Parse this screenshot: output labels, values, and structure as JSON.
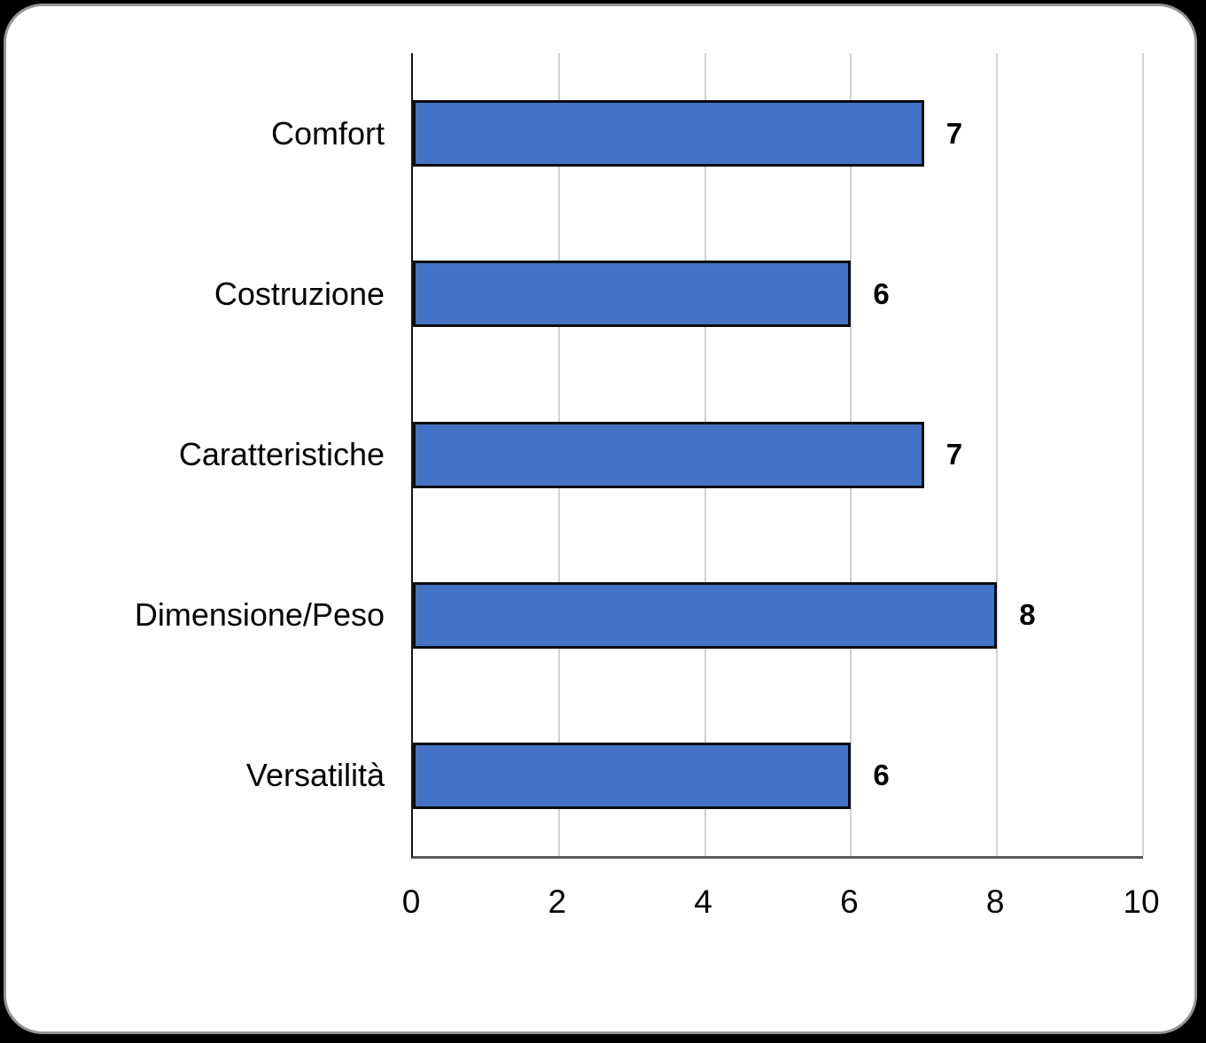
{
  "chart_data": {
    "type": "bar",
    "orientation": "horizontal",
    "title": "",
    "categories": [
      "Comfort",
      "Costruzione",
      "Caratteristiche",
      "Dimensione/Peso",
      "Versatilità"
    ],
    "values": [
      7,
      6,
      7,
      8,
      6
    ],
    "value_labels": [
      "7",
      "6",
      "7",
      "8",
      "6"
    ],
    "xlabel": "",
    "ylabel": "",
    "xlim": [
      0,
      10
    ],
    "xticks": [
      0,
      2,
      4,
      6,
      8,
      10
    ],
    "grid": true,
    "legend": false,
    "colors": {
      "bar_fill": "#4472C4",
      "bar_border": "#0d0d0d",
      "gridline": "#d2d2d2",
      "axis_line": "#595959",
      "text": "#000000",
      "card_background": "#ffffff",
      "card_border": "#949494",
      "page_background": "#000000"
    }
  }
}
